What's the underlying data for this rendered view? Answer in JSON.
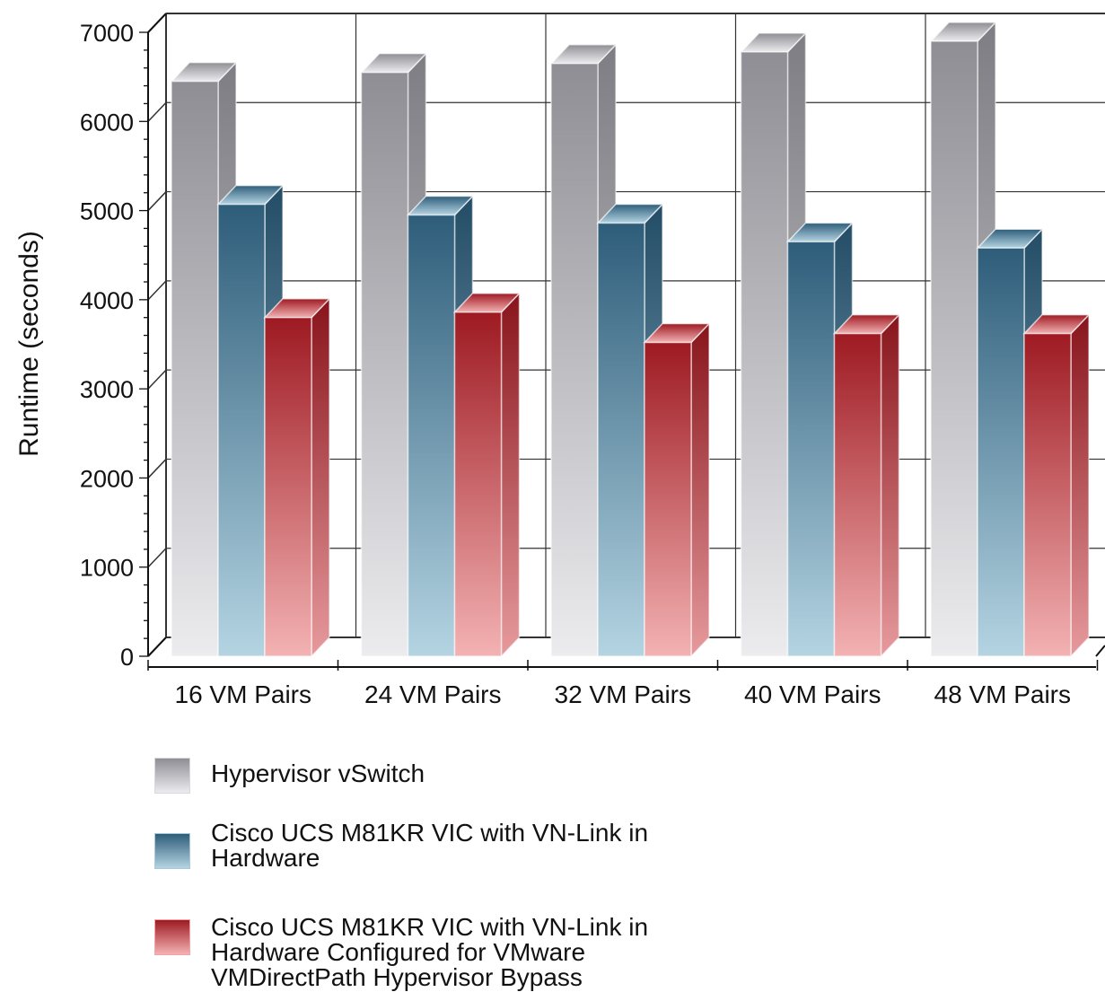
{
  "chart_data": {
    "type": "bar",
    "ylabel": "Runtime (seconds)",
    "ylim": [
      0,
      7000
    ],
    "yticks": [
      "0",
      "1000",
      "2000",
      "3000",
      "4000",
      "5000",
      "6000",
      "7000"
    ],
    "categories": [
      "16 VM Pairs",
      "24 VM Pairs",
      "32 VM Pairs",
      "40 VM Pairs",
      "48 VM Pairs"
    ],
    "series": [
      {
        "name": "Hypervisor vSwitch",
        "color": "#b5b5ba",
        "values": [
          6450,
          6550,
          6650,
          6780,
          6900
        ]
      },
      {
        "name": "Cisco UCS M81KR VIC with VN-Link in Hardware",
        "color": "#4f7f9b",
        "values": [
          5070,
          4950,
          4860,
          4650,
          4580
        ]
      },
      {
        "name": "Cisco UCS M81KR VIC with VN-Link in Hardware Configured for VMware VMDirectPath Hypervisor Bypass",
        "color": "#c8323a",
        "values": [
          3800,
          3860,
          3520,
          3620,
          3620
        ]
      }
    ],
    "grid": true,
    "legend_position": "bottom-left",
    "style": "3d-bar"
  },
  "legend": {
    "items": [
      {
        "lines": [
          "Hypervisor vSwitch"
        ]
      },
      {
        "lines": [
          "Cisco UCS M81KR VIC with VN-Link in",
          "Hardware"
        ]
      },
      {
        "lines": [
          "Cisco UCS M81KR VIC with VN-Link in",
          "Hardware Configured for VMware",
          "VMDirectPath Hypervisor Bypass"
        ]
      }
    ]
  }
}
